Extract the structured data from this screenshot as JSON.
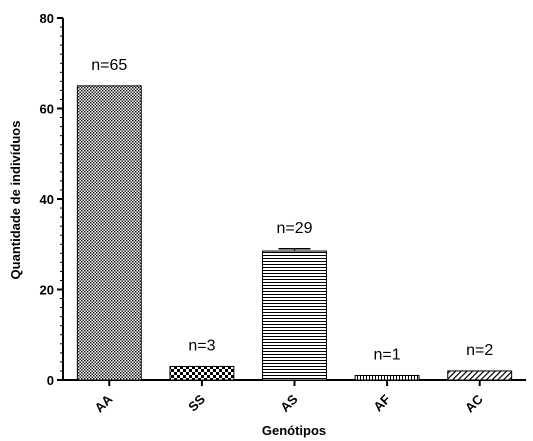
{
  "chart_data": {
    "type": "bar",
    "categories": [
      "AA",
      "SS",
      "AS",
      "AF",
      "AC"
    ],
    "values": [
      65,
      3,
      28.5,
      1,
      2
    ],
    "error_upper": [
      65,
      3,
      29,
      1,
      2
    ],
    "data_labels": [
      "n=65",
      "n=3",
      "n=29",
      "n=1",
      "n=2"
    ],
    "patterns": [
      "dots",
      "checker",
      "hlines",
      "vlines",
      "diagonal"
    ],
    "xlabel": "Genótipos",
    "ylabel": "Quantidade de indivíduos",
    "ylim": [
      0,
      80
    ],
    "yticks": [
      0,
      20,
      40,
      60,
      80
    ],
    "ytick_labels": [
      "0",
      "20",
      "40",
      "60",
      "80"
    ],
    "grid": false,
    "legend": "none",
    "bar_stroke_color": "#000000"
  }
}
